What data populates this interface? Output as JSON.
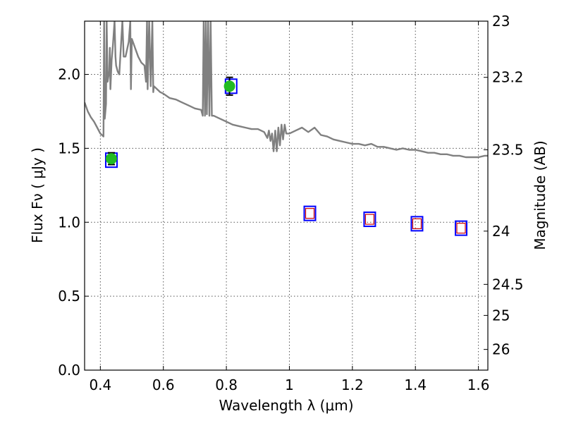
{
  "chart_data": {
    "type": "scatter",
    "title": "",
    "xlabel": "Wavelength  λ (μm)",
    "ylabel": "Flux  Fν ( μJy )",
    "y2label": "Magnitude (AB)",
    "xlim": [
      0.35,
      1.63
    ],
    "ylim": [
      0.0,
      2.36
    ],
    "grid": true,
    "legend": "none",
    "x_ticks": [
      {
        "value": 0.4,
        "label": "0.4"
      },
      {
        "value": 0.6,
        "label": "0.6"
      },
      {
        "value": 0.8,
        "label": "0.8"
      },
      {
        "value": 1.0,
        "label": "1"
      },
      {
        "value": 1.2,
        "label": "1.2"
      },
      {
        "value": 1.4,
        "label": "1.4"
      },
      {
        "value": 1.6,
        "label": "1.6"
      }
    ],
    "y_ticks": [
      {
        "value": 0.0,
        "label": "0.0"
      },
      {
        "value": 0.5,
        "label": "0.5"
      },
      {
        "value": 1.0,
        "label": "1.0"
      },
      {
        "value": 1.5,
        "label": "1.5"
      },
      {
        "value": 2.0,
        "label": "2.0"
      }
    ],
    "y2_ticks": [
      {
        "flux": 2.36,
        "label": "23"
      },
      {
        "flux": 1.98,
        "label": "23.2"
      },
      {
        "flux": 1.49,
        "label": "23.5"
      },
      {
        "flux": 0.94,
        "label": "24"
      },
      {
        "flux": 0.58,
        "label": "24.5"
      },
      {
        "flux": 0.37,
        "label": "25"
      },
      {
        "flux": 0.14,
        "label": "26"
      }
    ],
    "colors": {
      "spectrum": "#808080",
      "detection": "#22bb22",
      "box_outer": "#0000ff",
      "box_inner": "#cc0000",
      "grid": "#555555"
    },
    "series": [
      {
        "kind": "spectrum",
        "points": [
          [
            0.35,
            1.81
          ],
          [
            0.36,
            1.75
          ],
          [
            0.37,
            1.71
          ],
          [
            0.38,
            1.68
          ],
          [
            0.39,
            1.64
          ],
          [
            0.4,
            1.6
          ],
          [
            0.405,
            1.59
          ],
          [
            0.41,
            1.58
          ],
          [
            0.412,
            2.36
          ],
          [
            0.414,
            1.7
          ],
          [
            0.418,
            1.8
          ],
          [
            0.42,
            2.36
          ],
          [
            0.423,
            1.95
          ],
          [
            0.428,
            2.02
          ],
          [
            0.43,
            2.18
          ],
          [
            0.432,
            1.9
          ],
          [
            0.436,
            2.1
          ],
          [
            0.44,
            2.2
          ],
          [
            0.445,
            2.36
          ],
          [
            0.448,
            2.12
          ],
          [
            0.45,
            2.06
          ],
          [
            0.455,
            2.02
          ],
          [
            0.46,
            2.0
          ],
          [
            0.465,
            2.18
          ],
          [
            0.47,
            2.36
          ],
          [
            0.474,
            2.12
          ],
          [
            0.48,
            2.12
          ],
          [
            0.49,
            2.22
          ],
          [
            0.495,
            2.36
          ],
          [
            0.497,
            1.9
          ],
          [
            0.5,
            2.24
          ],
          [
            0.51,
            2.18
          ],
          [
            0.52,
            2.12
          ],
          [
            0.53,
            2.08
          ],
          [
            0.54,
            2.06
          ],
          [
            0.545,
            1.95
          ],
          [
            0.548,
            2.36
          ],
          [
            0.55,
            1.9
          ],
          [
            0.555,
            2.36
          ],
          [
            0.56,
            1.92
          ],
          [
            0.565,
            2.36
          ],
          [
            0.568,
            1.88
          ],
          [
            0.57,
            1.92
          ],
          [
            0.58,
            1.9
          ],
          [
            0.59,
            1.88
          ],
          [
            0.6,
            1.87
          ],
          [
            0.62,
            1.84
          ],
          [
            0.64,
            1.83
          ],
          [
            0.66,
            1.81
          ],
          [
            0.68,
            1.79
          ],
          [
            0.7,
            1.77
          ],
          [
            0.72,
            1.76
          ],
          [
            0.725,
            1.72
          ],
          [
            0.728,
            2.36
          ],
          [
            0.732,
            1.72
          ],
          [
            0.735,
            2.36
          ],
          [
            0.738,
            1.73
          ],
          [
            0.742,
            2.36
          ],
          [
            0.746,
            1.72
          ],
          [
            0.75,
            2.36
          ],
          [
            0.754,
            1.72
          ],
          [
            0.76,
            1.72
          ],
          [
            0.78,
            1.7
          ],
          [
            0.8,
            1.68
          ],
          [
            0.82,
            1.66
          ],
          [
            0.84,
            1.65
          ],
          [
            0.86,
            1.64
          ],
          [
            0.88,
            1.63
          ],
          [
            0.9,
            1.63
          ],
          [
            0.92,
            1.61
          ],
          [
            0.93,
            1.57
          ],
          [
            0.935,
            1.62
          ],
          [
            0.94,
            1.55
          ],
          [
            0.945,
            1.6
          ],
          [
            0.95,
            1.48
          ],
          [
            0.955,
            1.62
          ],
          [
            0.96,
            1.48
          ],
          [
            0.965,
            1.64
          ],
          [
            0.97,
            1.52
          ],
          [
            0.975,
            1.66
          ],
          [
            0.98,
            1.56
          ],
          [
            0.985,
            1.66
          ],
          [
            0.99,
            1.6
          ],
          [
            1.0,
            1.6
          ],
          [
            1.02,
            1.62
          ],
          [
            1.04,
            1.64
          ],
          [
            1.06,
            1.61
          ],
          [
            1.08,
            1.64
          ],
          [
            1.1,
            1.59
          ],
          [
            1.12,
            1.58
          ],
          [
            1.14,
            1.56
          ],
          [
            1.16,
            1.55
          ],
          [
            1.18,
            1.54
          ],
          [
            1.2,
            1.53
          ],
          [
            1.22,
            1.53
          ],
          [
            1.24,
            1.52
          ],
          [
            1.26,
            1.53
          ],
          [
            1.28,
            1.51
          ],
          [
            1.3,
            1.51
          ],
          [
            1.32,
            1.5
          ],
          [
            1.34,
            1.49
          ],
          [
            1.36,
            1.5
          ],
          [
            1.38,
            1.49
          ],
          [
            1.4,
            1.49
          ],
          [
            1.42,
            1.48
          ],
          [
            1.44,
            1.47
          ],
          [
            1.46,
            1.47
          ],
          [
            1.48,
            1.46
          ],
          [
            1.5,
            1.46
          ],
          [
            1.52,
            1.45
          ],
          [
            1.54,
            1.45
          ],
          [
            1.56,
            1.44
          ],
          [
            1.58,
            1.44
          ],
          [
            1.6,
            1.44
          ],
          [
            1.62,
            1.45
          ],
          [
            1.63,
            1.45
          ]
        ]
      },
      {
        "kind": "detection",
        "points": [
          {
            "x": 0.435,
            "y": 1.43,
            "err": 0.04
          },
          {
            "x": 0.81,
            "y": 1.92,
            "err": 0.06
          }
        ]
      },
      {
        "kind": "model-box",
        "points": [
          {
            "x": 0.435,
            "y": 1.42
          },
          {
            "x": 0.815,
            "y": 1.92
          }
        ]
      },
      {
        "kind": "upper-box",
        "points": [
          {
            "x": 1.065,
            "y": 1.06
          },
          {
            "x": 1.255,
            "y": 1.02
          },
          {
            "x": 1.405,
            "y": 0.99
          },
          {
            "x": 1.545,
            "y": 0.96
          }
        ]
      }
    ]
  }
}
